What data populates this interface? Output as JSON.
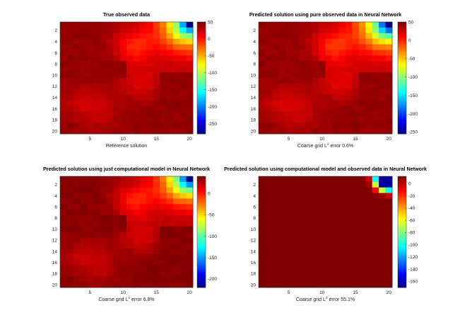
{
  "chart_data": [
    {
      "type": "heatmap",
      "title": "True observed data",
      "xlabel": "Reference solution",
      "xlabel_sup": "",
      "xlabel_suffix": "",
      "xticks": [
        5,
        10,
        15,
        20
      ],
      "yticks": [
        2,
        4,
        6,
        8,
        10,
        12,
        14,
        16,
        18,
        20
      ],
      "grid_size": [
        20,
        20
      ],
      "colorbar": {
        "min": -280,
        "max": 50,
        "ticks": [
          50,
          0,
          -50,
          -100,
          -150,
          -200,
          -250
        ]
      },
      "colormap": "jet",
      "field": "observed"
    },
    {
      "type": "heatmap",
      "title": "Predicted solution using pure observed data in Neural Network",
      "xlabel": "Coarse grid L",
      "xlabel_sup": "2",
      "xlabel_suffix": " error  0.6%",
      "xticks": [
        5,
        10,
        15,
        20
      ],
      "yticks": [
        2,
        4,
        6,
        8,
        10,
        12,
        14,
        16,
        18,
        20
      ],
      "grid_size": [
        20,
        20
      ],
      "colorbar": {
        "min": -255,
        "max": 50,
        "ticks": [
          50,
          0,
          -50,
          -100,
          -150,
          -200,
          -250
        ]
      },
      "colormap": "jet",
      "field": "observed"
    },
    {
      "type": "heatmap",
      "title": "Predicted solution using just computational model in Neural Network",
      "xlabel": "Coarse grid L",
      "xlabel_sup": "2",
      "xlabel_suffix": " error 6.8%",
      "xticks": [
        5,
        10,
        15,
        20
      ],
      "yticks": [
        2,
        4,
        6,
        8,
        10,
        12,
        14,
        16,
        18,
        20
      ],
      "grid_size": [
        20,
        20
      ],
      "colorbar": {
        "min": -220,
        "max": 40,
        "ticks": [
          0,
          -50,
          -100,
          -150,
          -200
        ]
      },
      "colormap": "jet",
      "field": "computational"
    },
    {
      "type": "heatmap",
      "title": "Predicted solution using computational model and observed data in Neural Network",
      "xlabel": "Coarse grid L",
      "xlabel_sup": "2",
      "xlabel_suffix": " error 55.1%",
      "xticks": [
        5,
        10,
        15,
        20
      ],
      "yticks": [
        2,
        4,
        6,
        8,
        10,
        12,
        14,
        16,
        18,
        20
      ],
      "grid_size": [
        20,
        20
      ],
      "colorbar": {
        "min": -170,
        "max": 12,
        "ticks": [
          0,
          -20,
          -40,
          -60,
          -80,
          -100,
          -120,
          -140,
          -160
        ]
      },
      "colormap": "jet",
      "field": "combined"
    }
  ]
}
